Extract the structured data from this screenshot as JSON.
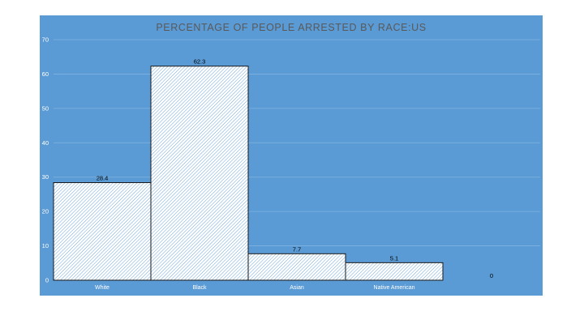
{
  "chart_data": {
    "type": "bar",
    "title": "PERCENTAGE OF PEOPLE ARRESTED BY RACE:US",
    "xlabel": "",
    "ylabel": "",
    "categories": [
      "White",
      "Black",
      "Asian",
      "Native American",
      ""
    ],
    "values": [
      28.4,
      62.3,
      7.7,
      5.1,
      0
    ],
    "data_labels": [
      "28.4",
      "62.3",
      "7.7",
      "5.1",
      "0"
    ],
    "ylim": [
      0,
      70
    ],
    "yticks": [
      0,
      10,
      20,
      30,
      40,
      50,
      60,
      70
    ],
    "grid": true,
    "legend": "none",
    "colors": {
      "background": "#5b9bd5",
      "bar_fill": "#ffffff",
      "bar_hatch": "#5b9bd5",
      "bar_outline": "#1a1a1a",
      "title": "#595959"
    }
  }
}
